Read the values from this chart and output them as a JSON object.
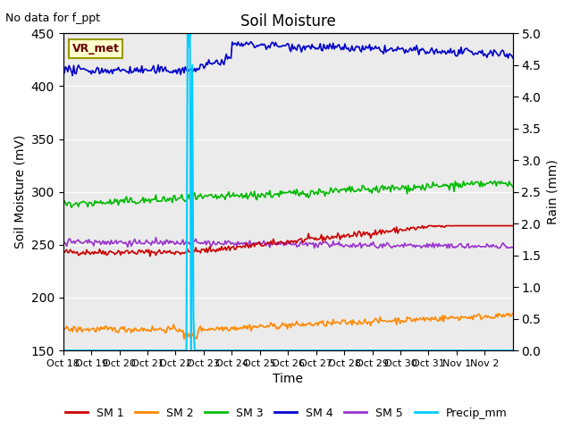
{
  "title": "Soil Moisture",
  "subtitle": "No data for f_ppt",
  "xlabel": "Time",
  "ylabel_left": "Soil Moisture (mV)",
  "ylabel_right": "Rain (mm)",
  "ylim_left": [
    150,
    450
  ],
  "ylim_right": [
    0.0,
    5.0
  ],
  "yticks_left": [
    150,
    200,
    250,
    300,
    350,
    400,
    450
  ],
  "yticks_right": [
    0.0,
    0.5,
    1.0,
    1.5,
    2.0,
    2.5,
    3.0,
    3.5,
    4.0,
    4.5,
    5.0
  ],
  "xtick_labels": [
    "Oct 18",
    "Oct 19",
    "Oct 20",
    "Oct 21",
    "Oct 22",
    "Oct 23",
    "Oct 24",
    "Oct 25",
    "Oct 26",
    "Oct 27",
    "Oct 28",
    "Oct 29",
    "Oct 30",
    "Oct 31",
    "Nov 1",
    "Nov 2"
  ],
  "vr_met_label": "VR_met",
  "background_color": "#ebebeb",
  "figure_color": "#ffffff",
  "sm1_color": "#cc0000",
  "sm2_color": "#ff8800",
  "sm3_color": "#00bb00",
  "sm4_color": "#0000cc",
  "sm5_color": "#9933cc",
  "precip_color": "#00ccff"
}
